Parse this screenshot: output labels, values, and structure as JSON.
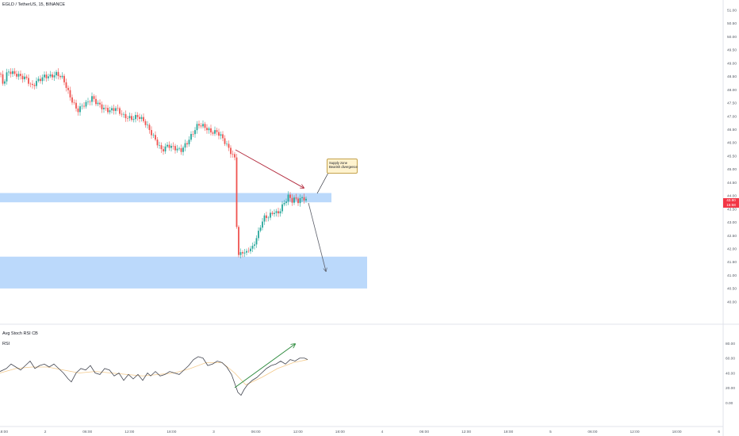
{
  "header": {
    "symbol_title": "EGLD / TetherUS, 15, BINANCE",
    "indicator_title": "Avg Stoch RSI CB",
    "indicator_sub": "RSI"
  },
  "annotation": {
    "line1": "Supply zone",
    "line2": "Bearish divergence"
  },
  "price_tag": {
    "price": "43.90",
    "countdown": "15:58"
  },
  "colors": {
    "bull": "#26a69a",
    "bear": "#ef5350",
    "zone": "#bbd9fb",
    "rsi": "#434651",
    "signal": "#f3c98b",
    "arrow_red": "#b2283b",
    "arrow_green": "#2e8b3e",
    "arrow_gray": "#5d606b"
  },
  "chart_data": [
    {
      "type": "candlestick",
      "title": "EGLD / TetherUS, 15, BINANCE",
      "y_ticks": [
        "51.00",
        "50.50",
        "50.00",
        "49.50",
        "49.00",
        "48.50",
        "48.00",
        "47.50",
        "47.00",
        "46.50",
        "46.00",
        "45.50",
        "45.00",
        "44.50",
        "44.00",
        "43.50",
        "43.00",
        "42.50",
        "42.00",
        "41.50",
        "41.00",
        "40.50",
        "40.00"
      ],
      "ylim": [
        39.6,
        51.2
      ],
      "x_ticks": [
        "18:00",
        "2",
        "06:00",
        "12:00",
        "18:00",
        "3",
        "06:00",
        "12:00",
        "18:00",
        "4",
        "06:00",
        "12:00",
        "18:00",
        "5",
        "06:00",
        "12:00",
        "18:00",
        "6"
      ],
      "price_path": [
        [
          0,
          48.6
        ],
        [
          4,
          48.2
        ],
        [
          10,
          48.7
        ],
        [
          18,
          48.6
        ],
        [
          26,
          48.5
        ],
        [
          34,
          48.4
        ],
        [
          40,
          48.1
        ],
        [
          46,
          48.3
        ],
        [
          56,
          48.5
        ],
        [
          64,
          48.5
        ],
        [
          72,
          48.6
        ],
        [
          80,
          48.4
        ],
        [
          86,
          47.9
        ],
        [
          92,
          47.5
        ],
        [
          98,
          47.2
        ],
        [
          104,
          47.4
        ],
        [
          110,
          47.5
        ],
        [
          116,
          47.7
        ],
        [
          122,
          47.5
        ],
        [
          130,
          47.3
        ],
        [
          138,
          47.2
        ],
        [
          146,
          47.3
        ],
        [
          156,
          47.0
        ],
        [
          166,
          46.9
        ],
        [
          174,
          47.0
        ],
        [
          182,
          46.8
        ],
        [
          190,
          46.4
        ],
        [
          196,
          46.1
        ],
        [
          204,
          45.7
        ],
        [
          212,
          45.9
        ],
        [
          220,
          45.8
        ],
        [
          228,
          45.7
        ],
        [
          236,
          46.0
        ],
        [
          244,
          46.4
        ],
        [
          250,
          46.7
        ],
        [
          258,
          46.6
        ],
        [
          266,
          46.4
        ],
        [
          274,
          46.4
        ],
        [
          280,
          46.2
        ],
        [
          286,
          45.9
        ],
        [
          292,
          45.6
        ],
        [
          296,
          45.4
        ],
        [
          298,
          43.3
        ],
        [
          300,
          41.7
        ],
        [
          303,
          41.8
        ],
        [
          306,
          41.9
        ],
        [
          310,
          41.8
        ],
        [
          314,
          42.0
        ],
        [
          318,
          42.0
        ],
        [
          322,
          42.3
        ],
        [
          326,
          42.6
        ],
        [
          330,
          43.0
        ],
        [
          334,
          43.2
        ],
        [
          338,
          43.2
        ],
        [
          342,
          43.3
        ],
        [
          346,
          43.4
        ],
        [
          350,
          43.3
        ],
        [
          356,
          43.6
        ],
        [
          360,
          43.8
        ],
        [
          364,
          44.0
        ],
        [
          368,
          43.8
        ],
        [
          372,
          43.9
        ],
        [
          376,
          43.8
        ],
        [
          380,
          43.9
        ],
        [
          384,
          43.9
        ],
        [
          388,
          43.8
        ]
      ],
      "supply_zone": [
        43.75,
        44.1
      ],
      "demand_zone": [
        40.5,
        41.7
      ],
      "annotations": [
        "Supply zone",
        "Bearish divergence"
      ],
      "last_price": 43.9
    },
    {
      "type": "line",
      "title": "Avg Stoch RSI CB",
      "series_label": "RSI",
      "y_ticks": [
        "80.00",
        "60.00",
        "40.00",
        "20.00",
        "0.00"
      ],
      "ylim": [
        0,
        80
      ],
      "series": [
        {
          "values": [
            [
              0,
              42
            ],
            [
              8,
              46
            ],
            [
              14,
              52
            ],
            [
              20,
              48
            ],
            [
              26,
              44
            ],
            [
              32,
              50
            ],
            [
              38,
              56
            ],
            [
              44,
              46
            ],
            [
              50,
              50
            ],
            [
              56,
              52
            ],
            [
              62,
              48
            ],
            [
              68,
              52
            ],
            [
              74,
              46
            ],
            [
              80,
              40
            ],
            [
              86,
              32
            ],
            [
              90,
              28
            ],
            [
              96,
              40
            ],
            [
              102,
              46
            ],
            [
              108,
              44
            ],
            [
              114,
              50
            ],
            [
              120,
              40
            ],
            [
              126,
              38
            ],
            [
              132,
              46
            ],
            [
              138,
              44
            ],
            [
              144,
              36
            ],
            [
              150,
              40
            ],
            [
              156,
              30
            ],
            [
              162,
              38
            ],
            [
              168,
              32
            ],
            [
              174,
              38
            ],
            [
              180,
              30
            ],
            [
              186,
              40
            ],
            [
              190,
              36
            ],
            [
              196,
              42
            ],
            [
              202,
              36
            ],
            [
              208,
              38
            ],
            [
              214,
              42
            ],
            [
              220,
              40
            ],
            [
              226,
              38
            ],
            [
              232,
              44
            ],
            [
              238,
              50
            ],
            [
              244,
              58
            ],
            [
              250,
              62
            ],
            [
              256,
              60
            ],
            [
              262,
              50
            ],
            [
              268,
              52
            ],
            [
              274,
              56
            ],
            [
              280,
              54
            ],
            [
              286,
              48
            ],
            [
              292,
              38
            ],
            [
              296,
              26
            ],
            [
              300,
              14
            ],
            [
              304,
              10
            ],
            [
              308,
              18
            ],
            [
              312,
              24
            ],
            [
              318,
              30
            ],
            [
              324,
              34
            ],
            [
              330,
              40
            ],
            [
              336,
              46
            ],
            [
              342,
              50
            ],
            [
              348,
              52
            ],
            [
              354,
              56
            ],
            [
              360,
              52
            ],
            [
              366,
              58
            ],
            [
              372,
              56
            ],
            [
              378,
              60
            ],
            [
              384,
              60
            ],
            [
              388,
              58
            ]
          ]
        },
        {
          "values": [
            [
              0,
              40
            ],
            [
              20,
              46
            ],
            [
              40,
              48
            ],
            [
              60,
              48
            ],
            [
              80,
              44
            ],
            [
              100,
              40
            ],
            [
              120,
              42
            ],
            [
              140,
              40
            ],
            [
              160,
              38
            ],
            [
              180,
              36
            ],
            [
              200,
              38
            ],
            [
              220,
              40
            ],
            [
              240,
              46
            ],
            [
              260,
              54
            ],
            [
              280,
              54
            ],
            [
              296,
              40
            ],
            [
              310,
              24
            ],
            [
              330,
              34
            ],
            [
              350,
              46
            ],
            [
              370,
              54
            ],
            [
              388,
              58
            ]
          ]
        }
      ]
    }
  ]
}
